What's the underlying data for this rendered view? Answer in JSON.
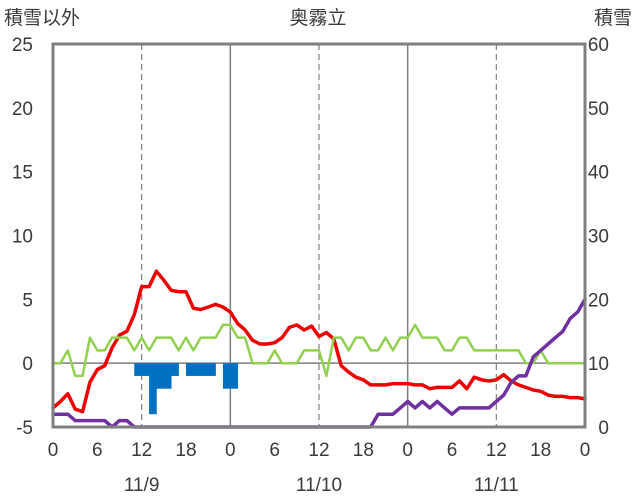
{
  "chart_data": {
    "type": "line",
    "title": "奥霧立",
    "ylabel_left": "積雪以外",
    "ylabel_right": "積雪",
    "y_left": {
      "min": -5,
      "max": 25,
      "ticks": [
        25,
        20,
        15,
        10,
        5,
        0,
        -5
      ]
    },
    "y_right": {
      "min": 0,
      "max": 60,
      "ticks": [
        60,
        50,
        40,
        30,
        20,
        10,
        0
      ]
    },
    "x": {
      "min": 0,
      "max": 72,
      "ticks": [
        0,
        6,
        12,
        18,
        24,
        30,
        36,
        42,
        48,
        54,
        60,
        66,
        72
      ],
      "tick_labels": [
        "0",
        "6",
        "12",
        "18",
        "0",
        "6",
        "12",
        "18",
        "0",
        "6",
        "12",
        "18",
        "0"
      ],
      "day_labels": [
        {
          "hour": 12,
          "label": "11/9"
        },
        {
          "hour": 36,
          "label": "11/10"
        },
        {
          "hour": 60,
          "label": "11/11"
        }
      ],
      "solid_gridlines": [
        24,
        48
      ],
      "dashed_gridlines": [
        12,
        36,
        60
      ]
    },
    "colors": {
      "temperature": "#ee0000",
      "wind": "#92d050",
      "snow_depth": "#7030a0",
      "precip": "#0070c0",
      "frame": "#7f7f7f"
    },
    "series": [
      {
        "key": "temperature",
        "axis": "left",
        "style": "line",
        "x": [
          0,
          1,
          2,
          3,
          4,
          5,
          6,
          7,
          8,
          9,
          10,
          11,
          12,
          13,
          14,
          15,
          16,
          17,
          18,
          19,
          20,
          21,
          22,
          23,
          24,
          25,
          26,
          27,
          28,
          29,
          30,
          31,
          32,
          33,
          34,
          35,
          36,
          37,
          38,
          39,
          40,
          41,
          42,
          43,
          44,
          45,
          46,
          47,
          48,
          49,
          50,
          51,
          52,
          53,
          54,
          55,
          56,
          57,
          58,
          59,
          60,
          61,
          62,
          63,
          64,
          65,
          66,
          67,
          68,
          69,
          70,
          71,
          72
        ],
        "values": [
          -3.5,
          -3,
          -2.4,
          -3.6,
          -3.8,
          -1.5,
          -0.5,
          -0.2,
          1.2,
          2.2,
          2.5,
          3.8,
          6,
          6,
          7.2,
          6.5,
          5.7,
          5.6,
          5.6,
          4.3,
          4.2,
          4.4,
          4.6,
          4.4,
          4,
          3.1,
          2.6,
          1.8,
          1.5,
          1.5,
          1.6,
          2,
          2.8,
          3,
          2.6,
          2.9,
          2.1,
          2.4,
          1.9,
          -0.2,
          -0.7,
          -1.1,
          -1.3,
          -1.7,
          -1.7,
          -1.7,
          -1.6,
          -1.6,
          -1.6,
          -1.7,
          -1.7,
          -2,
          -1.9,
          -1.9,
          -1.9,
          -1.4,
          -2,
          -1.1,
          -1.3,
          -1.4,
          -1.3,
          -0.9,
          -1.4,
          -1.7,
          -1.9,
          -2.1,
          -2.2,
          -2.5,
          -2.6,
          -2.6,
          -2.7,
          -2.7,
          -2.8
        ]
      },
      {
        "key": "wind",
        "axis": "left",
        "style": "line",
        "x": [
          0,
          1,
          2,
          3,
          4,
          5,
          6,
          7,
          8,
          9,
          10,
          11,
          12,
          13,
          14,
          15,
          16,
          17,
          18,
          19,
          20,
          21,
          22,
          23,
          24,
          25,
          26,
          27,
          28,
          29,
          30,
          31,
          32,
          33,
          34,
          35,
          36,
          37,
          38,
          39,
          40,
          41,
          42,
          43,
          44,
          45,
          46,
          47,
          48,
          49,
          50,
          51,
          52,
          53,
          54,
          55,
          56,
          57,
          58,
          59,
          60,
          61,
          62,
          63,
          64,
          65,
          66,
          67,
          68,
          69,
          70,
          71,
          72
        ],
        "values": [
          0,
          0,
          1,
          -1,
          -1,
          2,
          1,
          1,
          2,
          2,
          2,
          1,
          2,
          1,
          2,
          2,
          2,
          1,
          2,
          1,
          2,
          2,
          2,
          3,
          3,
          2,
          2,
          0,
          0,
          0,
          1,
          0,
          0,
          0,
          1,
          1,
          1,
          -1,
          2,
          2,
          1,
          2,
          2,
          1,
          1,
          2,
          1,
          2,
          2,
          3,
          2,
          2,
          2,
          1,
          1,
          2,
          2,
          1,
          1,
          1,
          1,
          1,
          1,
          1,
          0,
          0,
          1,
          0,
          0,
          0,
          0,
          0,
          0
        ]
      },
      {
        "key": "snow_depth",
        "axis": "right",
        "style": "line",
        "x": [
          0,
          1,
          2,
          3,
          4,
          5,
          6,
          7,
          8,
          9,
          10,
          11,
          12,
          13,
          14,
          15,
          16,
          17,
          18,
          19,
          20,
          21,
          22,
          23,
          24,
          25,
          26,
          27,
          28,
          29,
          30,
          31,
          32,
          33,
          34,
          35,
          36,
          37,
          38,
          39,
          40,
          41,
          42,
          43,
          44,
          45,
          46,
          47,
          48,
          49,
          50,
          51,
          52,
          53,
          54,
          55,
          56,
          57,
          58,
          59,
          60,
          61,
          62,
          63,
          64,
          65,
          66,
          67,
          68,
          69,
          70,
          71,
          72
        ],
        "values": [
          2,
          2,
          2,
          1,
          1,
          1,
          1,
          1,
          0,
          1,
          1,
          0,
          0,
          0,
          0,
          0,
          0,
          0,
          0,
          0,
          0,
          0,
          0,
          0,
          0,
          0,
          0,
          0,
          0,
          0,
          0,
          0,
          0,
          0,
          0,
          0,
          0,
          0,
          0,
          0,
          0,
          0,
          0,
          0,
          2,
          2,
          2,
          3,
          4,
          3,
          4,
          3,
          4,
          3,
          2,
          3,
          3,
          3,
          3,
          3,
          4,
          5,
          7,
          8,
          8,
          11,
          12,
          13,
          14,
          15,
          17,
          18,
          20
        ]
      },
      {
        "key": "precip",
        "axis": "left",
        "style": "bar",
        "x": [
          11,
          12,
          13,
          14,
          15,
          16,
          17,
          18,
          19,
          20,
          21,
          22,
          23,
          24
        ],
        "values": [
          -1,
          -1,
          -4,
          -2,
          -2,
          -1,
          0,
          -1,
          -1,
          -1,
          -1,
          0,
          -2,
          -2
        ]
      }
    ]
  }
}
